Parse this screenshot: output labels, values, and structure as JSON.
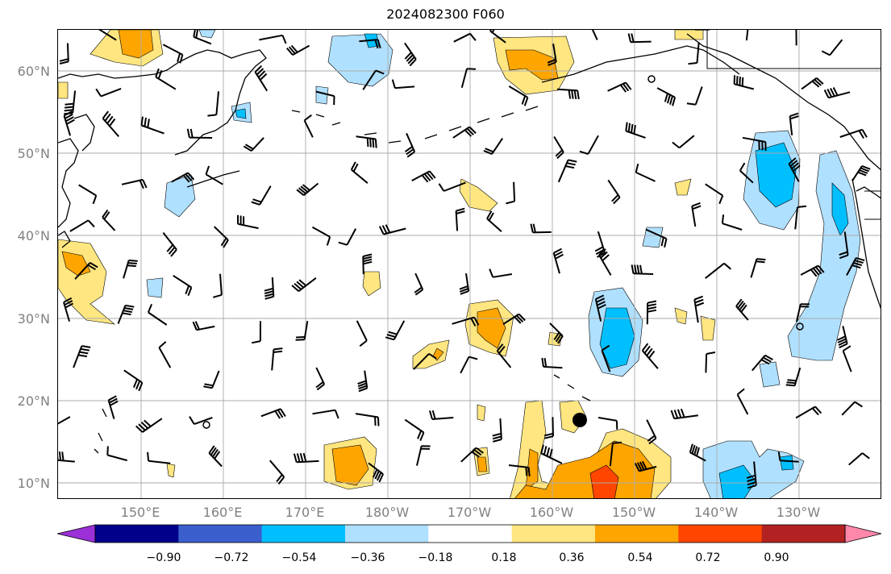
{
  "title": "2024082300 F060",
  "lat_labels": [
    "60°N",
    "50°N",
    "40°N",
    "30°N",
    "20°N",
    "10°N"
  ],
  "lon_labels": [
    "150°E",
    "160°E",
    "170°E",
    "180°W",
    "170°W",
    "160°W",
    "150°W",
    "140°W",
    "130°W"
  ],
  "colorbar": {
    "tick_labels": [
      "−0.90",
      "−0.72",
      "−0.54",
      "−0.36",
      "−0.18",
      "0.18",
      "0.36",
      "0.54",
      "0.72",
      "0.90"
    ],
    "colors": [
      "#9b30d8",
      "#00008b",
      "#3a5fcd",
      "#00bfff",
      "#b0e0ff",
      "#ffffff",
      "#ffe680",
      "#ffa500",
      "#ff4500",
      "#b22222",
      "#ff88aa"
    ]
  },
  "colors": {
    "coast": "#000000",
    "grid": "#aaaaaa",
    "contour": "#000000",
    "barb": "#000000"
  }
}
